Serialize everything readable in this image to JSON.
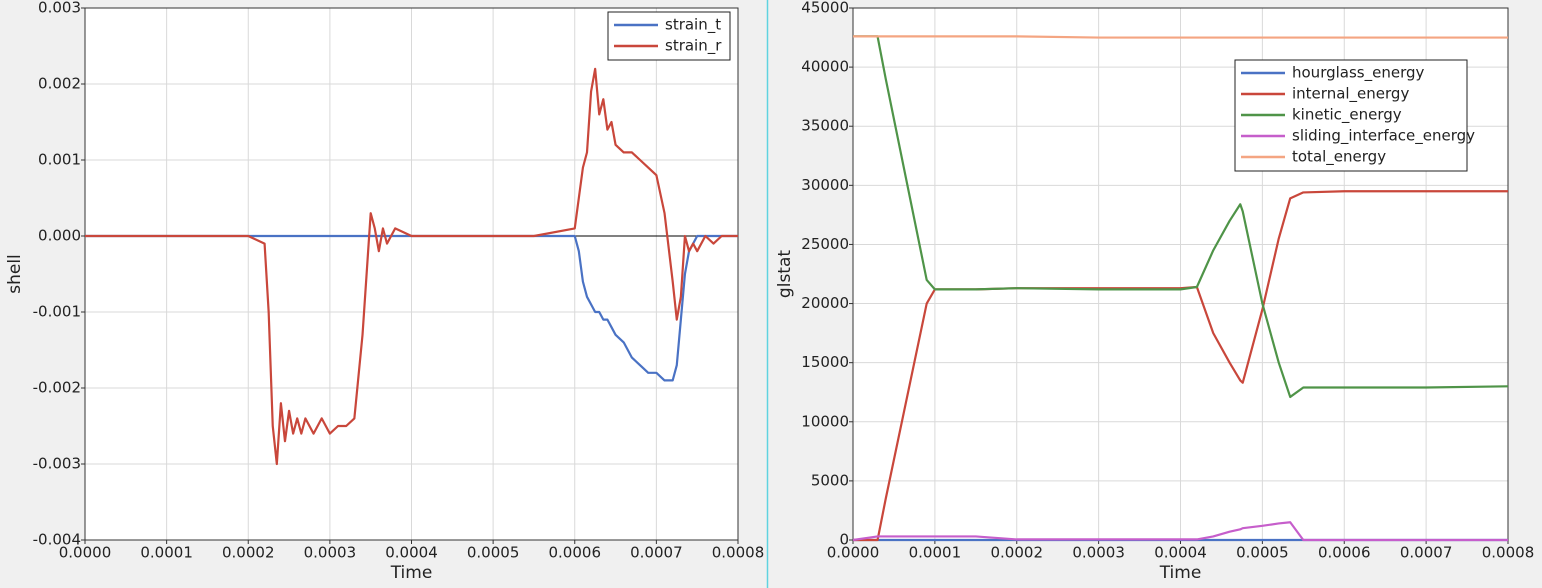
{
  "chart_data": [
    {
      "type": "line",
      "xlabel": "Time",
      "ylabel": "shell",
      "x": [
        0,
        0.0001,
        0.0002,
        0.00022,
        0.000225,
        0.00023,
        0.000235,
        0.00024,
        0.000245,
        0.00025,
        0.000255,
        0.00026,
        0.000265,
        0.00027,
        0.00028,
        0.00029,
        0.0003,
        0.00031,
        0.00032,
        0.00033,
        0.00034,
        0.00035,
        0.000355,
        0.00036,
        0.000365,
        0.00037,
        0.00038,
        0.0004,
        0.00045,
        0.0005,
        0.00055,
        0.0006,
        0.000605,
        0.00061,
        0.000615,
        0.00062,
        0.000625,
        0.00063,
        0.000635,
        0.00064,
        0.000645,
        0.00065,
        0.00066,
        0.00067,
        0.00068,
        0.00069,
        0.0007,
        0.00071,
        0.00072,
        0.000725,
        0.00073,
        0.000735,
        0.00074,
        0.000745,
        0.00075,
        0.00076,
        0.00077,
        0.00078,
        0.0008
      ],
      "series": [
        {
          "name": "strain_t",
          "color": "#4a72c4",
          "values": [
            0,
            0,
            0,
            0,
            0,
            0,
            0,
            0,
            0,
            0,
            0,
            0,
            0,
            0,
            0,
            0,
            0,
            0,
            0,
            0,
            0,
            0,
            0,
            0,
            0,
            0,
            0,
            0,
            0,
            0,
            0,
            0,
            -0.0002,
            -0.0006,
            -0.0008,
            -0.0009,
            -0.001,
            -0.001,
            -0.0011,
            -0.0011,
            -0.0012,
            -0.0013,
            -0.0014,
            -0.0016,
            -0.0017,
            -0.0018,
            -0.0018,
            -0.0019,
            -0.0019,
            -0.0017,
            -0.0011,
            -0.0005,
            -0.0002,
            -0.0001,
            0,
            0,
            0,
            0,
            0
          ]
        },
        {
          "name": "strain_r",
          "color": "#c9473b",
          "values": [
            0,
            0,
            0,
            -0.0001,
            -0.001,
            -0.0025,
            -0.003,
            -0.0022,
            -0.0027,
            -0.0023,
            -0.0026,
            -0.0024,
            -0.0026,
            -0.0024,
            -0.0026,
            -0.0024,
            -0.0026,
            -0.0025,
            -0.0025,
            -0.0024,
            -0.0013,
            0.0003,
            0.0001,
            -0.0002,
            0.0001,
            -0.0001,
            0.0001,
            0,
            0,
            0,
            0,
            0.0001,
            0.0005,
            0.0009,
            0.0011,
            0.0019,
            0.0022,
            0.0016,
            0.0018,
            0.0014,
            0.0015,
            0.0012,
            0.0011,
            0.0011,
            0.001,
            0.0009,
            0.0008,
            0.0003,
            -0.0006,
            -0.0011,
            -0.0008,
            0,
            -0.0002,
            -0.0001,
            -0.0002,
            0,
            -0.0001,
            0,
            0
          ]
        }
      ],
      "xlim": [
        0,
        0.0008
      ],
      "xticks": [
        {
          "value": 0,
          "label": "0.0000"
        },
        {
          "value": 0.0001,
          "label": "0.0001"
        },
        {
          "value": 0.0002,
          "label": "0.0002"
        },
        {
          "value": 0.0003,
          "label": "0.0003"
        },
        {
          "value": 0.0004,
          "label": "0.0004"
        },
        {
          "value": 0.0005,
          "label": "0.0005"
        },
        {
          "value": 0.0006,
          "label": "0.0006"
        },
        {
          "value": 0.0007,
          "label": "0.0007"
        },
        {
          "value": 0.0008,
          "label": "0.0008"
        }
      ],
      "ylim": [
        -0.004,
        0.003
      ],
      "yticks": [
        -0.004,
        -0.003,
        -0.002,
        -0.001,
        {
          "value": 0,
          "label": "0.000"
        },
        0.001,
        0.002,
        0.003
      ],
      "grid": true,
      "zero_line": true,
      "legend": "upper right"
    },
    {
      "type": "line",
      "xlabel": "Time",
      "ylabel": "glstat",
      "x": [
        0,
        3e-05,
        4e-05,
        9e-05,
        0.0001,
        0.00015,
        0.0002,
        0.0003,
        0.0004,
        0.00042,
        0.00044,
        0.00046,
        0.000473,
        0.000476,
        0.0005,
        0.00052,
        0.000534,
        0.00055,
        0.0006,
        0.0007,
        0.0008
      ],
      "series": [
        {
          "name": "hourglass_energy",
          "color": "#4a72c4",
          "values": [
            0,
            0,
            0,
            0,
            0,
            0,
            0,
            0,
            0,
            0,
            0,
            0,
            0,
            0,
            0,
            0,
            0,
            0,
            0,
            0,
            0
          ]
        },
        {
          "name": "internal_energy",
          "color": "#c9473b",
          "values": [
            0,
            0,
            3500,
            20000,
            21200,
            21200,
            21300,
            21300,
            21300,
            21400,
            17500,
            15000,
            13500,
            13300,
            19500,
            25500,
            28900,
            29400,
            29500,
            29500,
            29500
          ]
        },
        {
          "name": "kinetic_energy",
          "color": "#4f9448",
          "values": [
            42600,
            42600,
            39000,
            22000,
            21200,
            21200,
            21300,
            21200,
            21200,
            21400,
            24500,
            27000,
            28400,
            27800,
            20000,
            15000,
            12100,
            12900,
            12900,
            12900,
            13000
          ]
        },
        {
          "name": "sliding_interface_energy",
          "color": "#c65ecb",
          "values": [
            0,
            300,
            300,
            300,
            300,
            300,
            50,
            50,
            50,
            50,
            300,
            700,
            900,
            1000,
            1200,
            1400,
            1500,
            0,
            0,
            0,
            0
          ]
        },
        {
          "name": "total_energy",
          "color": "#f4a582",
          "values": [
            42600,
            42600,
            42600,
            42600,
            42600,
            42600,
            42600,
            42500,
            42500,
            42500,
            42500,
            42500,
            42500,
            42500,
            42500,
            42500,
            42500,
            42500,
            42500,
            42500,
            42500
          ]
        }
      ],
      "xlim": [
        0,
        0.0008
      ],
      "xticks": [
        {
          "value": 0,
          "label": "0.0000"
        },
        {
          "value": 0.0001,
          "label": "0.0001"
        },
        {
          "value": 0.0002,
          "label": "0.0002"
        },
        {
          "value": 0.0003,
          "label": "0.0003"
        },
        {
          "value": 0.0004,
          "label": "0.0004"
        },
        {
          "value": 0.0005,
          "label": "0.0005"
        },
        {
          "value": 0.0006,
          "label": "0.0006"
        },
        {
          "value": 0.0007,
          "label": "0.0007"
        },
        {
          "value": 0.0008,
          "label": "0.0008"
        }
      ],
      "ylim": [
        0,
        45000
      ],
      "yticks": [
        0,
        5000,
        10000,
        15000,
        20000,
        25000,
        30000,
        35000,
        40000,
        45000
      ],
      "grid": true,
      "zero_line": false,
      "legend": "upper right"
    }
  ]
}
